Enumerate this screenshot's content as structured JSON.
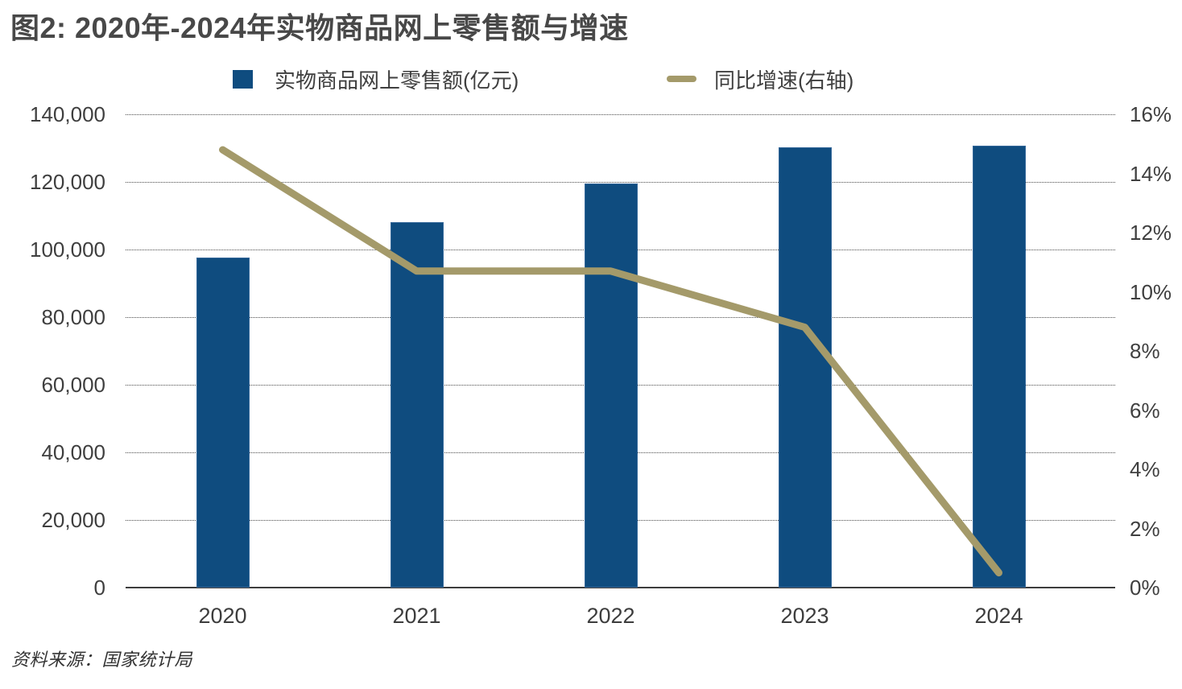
{
  "title": "图2: 2020年-2024年实物商品网上零售额与增速",
  "source": "资料来源：国家统计局",
  "legend": {
    "bar": {
      "label": "实物商品网上零售额(亿元)",
      "color": "#0f4c7f"
    },
    "line": {
      "label": "同比增速(右轴)",
      "color": "#a49a6a"
    }
  },
  "chart_data": {
    "type": "bar",
    "subtype": "bar-and-line-dual-axis",
    "title": "图2: 2020年-2024年实物商品网上零售额与增速",
    "categories": [
      "2020",
      "2021",
      "2022",
      "2023",
      "2024"
    ],
    "series": [
      {
        "name": "实物商品网上零售额(亿元)",
        "type": "bar",
        "axis": "left",
        "color": "#0f4c7f",
        "values": [
          97590,
          108042,
          119642,
          130174,
          130816
        ]
      },
      {
        "name": "同比增速(右轴)",
        "type": "line",
        "axis": "right",
        "color": "#a49a6a",
        "values": [
          14.8,
          10.7,
          10.7,
          8.8,
          0.5
        ]
      }
    ],
    "left_axis": {
      "min": 0,
      "max": 140000,
      "step": 20000,
      "tick_labels": [
        "140,000",
        "120,000",
        "100,000",
        "80,000",
        "60,000",
        "40,000",
        "20,000",
        "0"
      ]
    },
    "right_axis": {
      "min": 0,
      "max": 16,
      "step": 2,
      "unit": "%",
      "tick_labels": [
        "16%",
        "14%",
        "12%",
        "10%",
        "8%",
        "6%",
        "4%",
        "2%",
        "0%"
      ]
    },
    "grid": "horizontal-dotted",
    "legend_position": "top"
  }
}
